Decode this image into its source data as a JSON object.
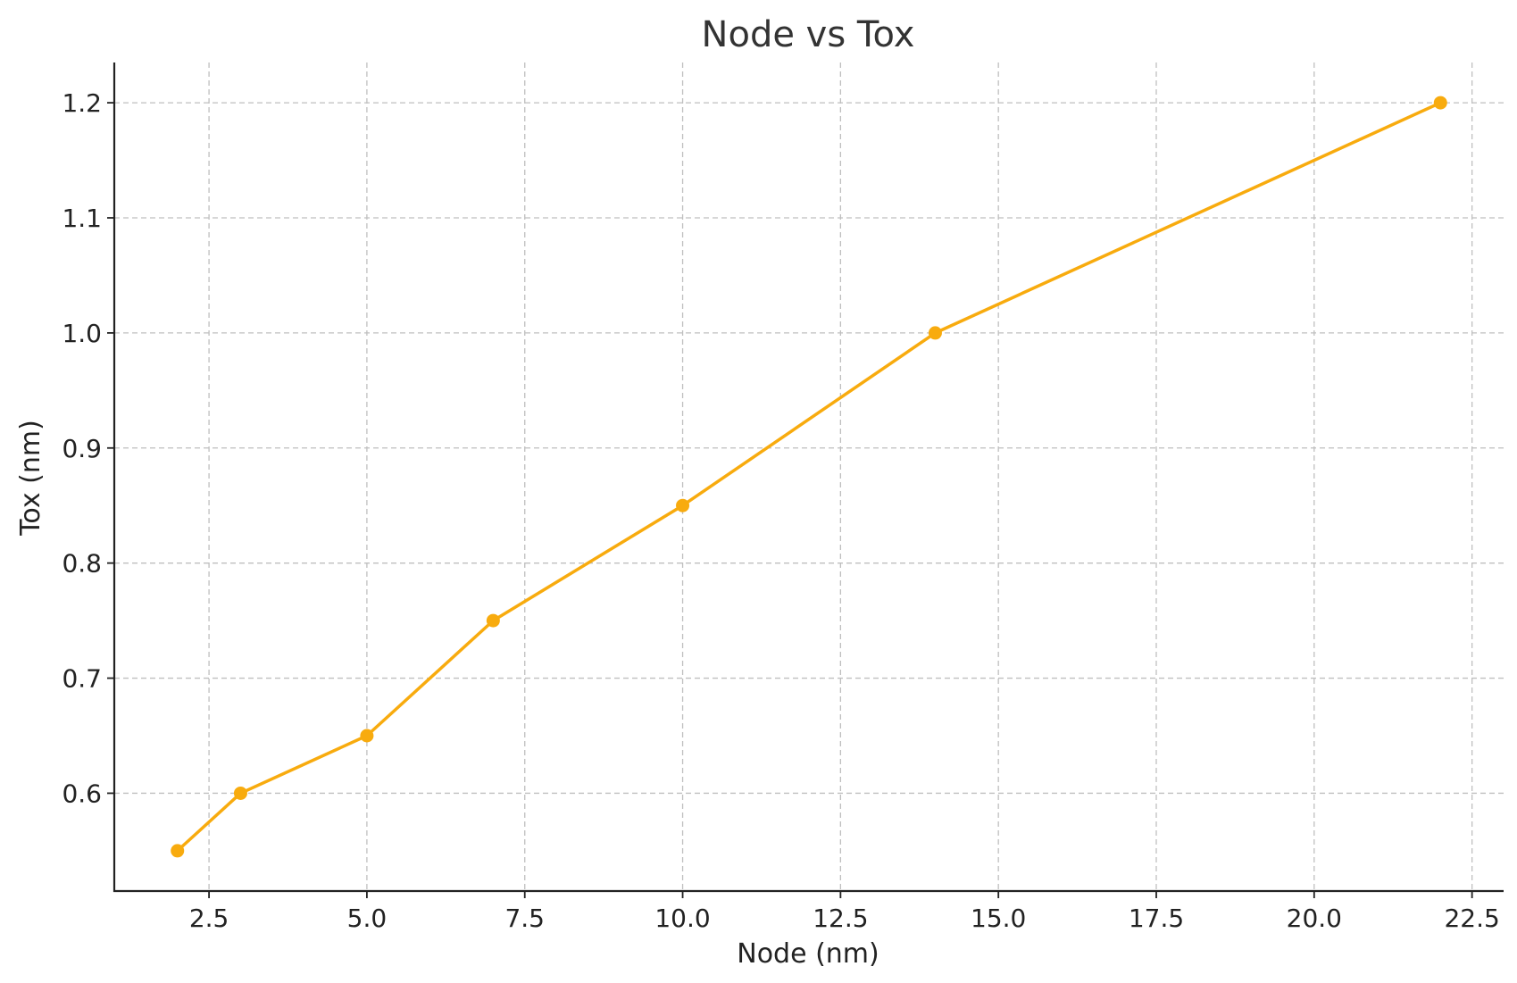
{
  "chart_data": {
    "type": "line",
    "title": "Node vs Tox",
    "xlabel": "Node (nm)",
    "ylabel": "Tox (nm)",
    "xlim": [
      1.0,
      23.0
    ],
    "ylim": [
      0.515,
      1.235
    ],
    "xticks": [
      2.5,
      5.0,
      7.5,
      10.0,
      12.5,
      15.0,
      17.5,
      20.0,
      22.5
    ],
    "xtick_labels": [
      "2.5",
      "5.0",
      "7.5",
      "10.0",
      "12.5",
      "15.0",
      "17.5",
      "20.0",
      "22.5"
    ],
    "yticks": [
      0.6,
      0.7,
      0.8,
      0.9,
      1.0,
      1.1,
      1.2
    ],
    "ytick_labels": [
      "0.6",
      "0.7",
      "0.8",
      "0.9",
      "1.0",
      "1.1",
      "1.2"
    ],
    "grid": true,
    "series": [
      {
        "x": [
          2,
          3,
          5,
          7,
          10,
          14,
          22
        ],
        "y": [
          0.55,
          0.6,
          0.65,
          0.75,
          0.85,
          1.0,
          1.2
        ],
        "color": "#f8ab0e",
        "marker": "circle"
      }
    ]
  }
}
